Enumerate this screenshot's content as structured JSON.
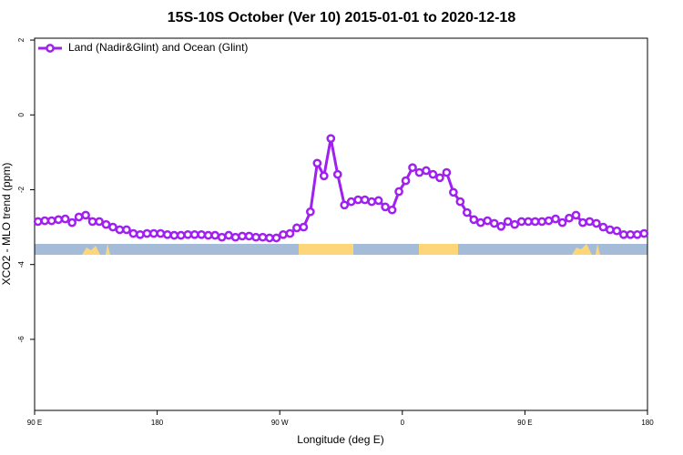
{
  "chart_data": {
    "type": "line",
    "title": "15S-10S October (Ver 10)   2015-01-01 to 2020-12-18",
    "xlabel": "Longitude (deg E)",
    "ylabel": "XCO2 - MLO trend (ppm)",
    "xlim": [
      90,
      540
    ],
    "ylim": [
      -7.9,
      2.05
    ],
    "xticks": [
      {
        "value": 90,
        "label": "90 E"
      },
      180,
      {
        "value": 270,
        "label": "90 W"
      },
      {
        "value": 360,
        "label": "0"
      },
      {
        "value": 450,
        "label": "90 E"
      },
      {
        "value": 540,
        "label": "180"
      }
    ],
    "yticks": [
      -6,
      -4,
      -2,
      0,
      2
    ],
    "legend": "top-left",
    "x": [
      92.5,
      97.5,
      102.5,
      107.5,
      112.5,
      117.5,
      122.5,
      127.5,
      132.5,
      137.5,
      142.5,
      147.5,
      152.5,
      157.5,
      162.5,
      167.5,
      172.5,
      177.5,
      182.5,
      187.5,
      192.5,
      197.5,
      202.5,
      207.5,
      212.5,
      217.5,
      222.5,
      227.5,
      232.5,
      237.5,
      242.5,
      247.5,
      252.5,
      257.5,
      262.5,
      267.5,
      272.5,
      277.5,
      282.5,
      287.5,
      292.5,
      297.5,
      302.5,
      307.5,
      312.5,
      317.5,
      322.5,
      327.5,
      332.5,
      337.5,
      342.5,
      347.5,
      352.5,
      357.5,
      362.5,
      367.5,
      372.5,
      377.5,
      382.5,
      387.5,
      392.5,
      397.5,
      402.5,
      407.5,
      412.5,
      417.5,
      422.5,
      427.5,
      432.5,
      437.5,
      442.5,
      447.5,
      452.5,
      457.5,
      462.5,
      467.5,
      472.5,
      477.5,
      482.5,
      487.5,
      492.5,
      497.5,
      502.5,
      507.5,
      512.5,
      517.5,
      522.5,
      527.5,
      532.5,
      537.5
    ],
    "series": [
      {
        "name": "Land (Nadir&Glint) and Ocean (Glint)",
        "color": "#a020f0",
        "values": [
          -2.85,
          -2.83,
          -2.83,
          -2.8,
          -2.78,
          -2.88,
          -2.73,
          -2.68,
          -2.85,
          -2.85,
          -2.93,
          -3.0,
          -3.07,
          -3.07,
          -3.17,
          -3.2,
          -3.17,
          -3.17,
          -3.17,
          -3.2,
          -3.22,
          -3.22,
          -3.2,
          -3.2,
          -3.2,
          -3.22,
          -3.22,
          -3.27,
          -3.22,
          -3.27,
          -3.24,
          -3.24,
          -3.27,
          -3.27,
          -3.29,
          -3.29,
          -3.2,
          -3.17,
          -3.02,
          -3.0,
          -2.59,
          -1.29,
          -1.63,
          -0.63,
          -1.59,
          -2.41,
          -2.32,
          -2.27,
          -2.27,
          -2.32,
          -2.29,
          -2.46,
          -2.54,
          -2.05,
          -1.76,
          -1.41,
          -1.54,
          -1.49,
          -1.59,
          -1.68,
          -1.54,
          -2.07,
          -2.32,
          -2.61,
          -2.8,
          -2.88,
          -2.83,
          -2.9,
          -2.98,
          -2.85,
          -2.93,
          -2.85,
          -2.85,
          -2.85,
          -2.85,
          -2.83,
          -2.78,
          -2.88,
          -2.76,
          -2.68,
          -2.88,
          -2.85,
          -2.9,
          -3.0,
          -3.07,
          -3.1,
          -3.2,
          -3.2,
          -3.2,
          -3.17
        ]
      }
    ]
  }
}
